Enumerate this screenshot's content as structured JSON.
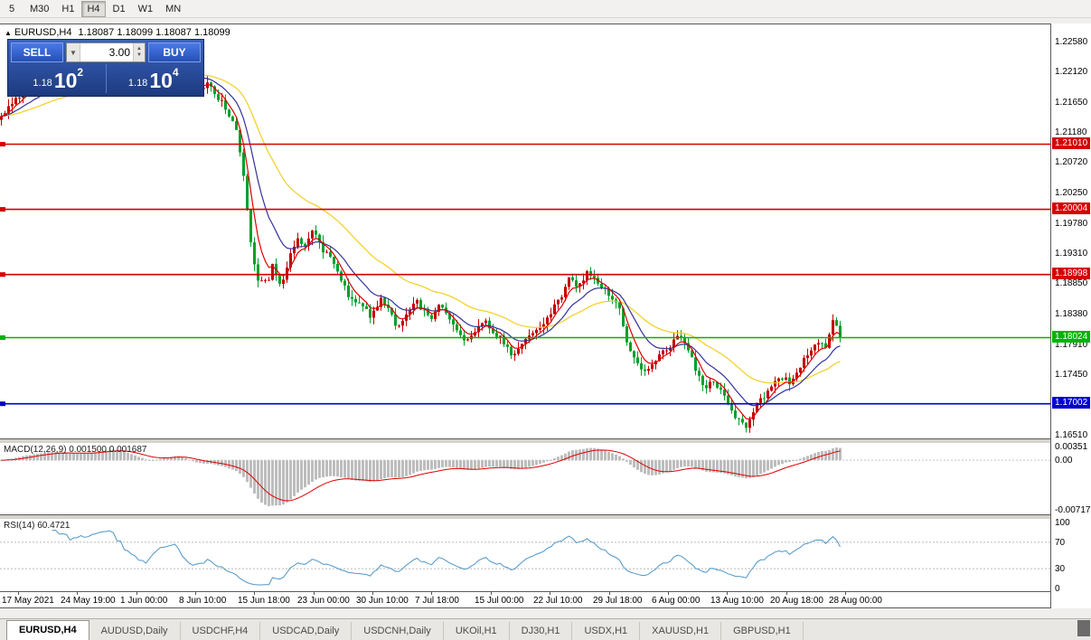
{
  "toolbar": {
    "timeframes": [
      "5",
      "M30",
      "H1",
      "H4",
      "D1",
      "W1",
      "MN"
    ],
    "active": "H4"
  },
  "chart_header": {
    "arrow": "▲",
    "title": "EURUSD,H4",
    "ohlc": "1.18087 1.18099 1.18087 1.18099"
  },
  "trade_panel": {
    "sell_label": "SELL",
    "buy_label": "BUY",
    "volume": "3.00",
    "sell_small": "1.18",
    "sell_big": "10",
    "sell_sup": "2",
    "buy_small": "1.18",
    "buy_big": "10",
    "buy_sup": "4"
  },
  "price_axis": {
    "ticks": [
      "1.22580",
      "1.22120",
      "1.21650",
      "1.21180",
      "1.20720",
      "1.20250",
      "1.19780",
      "1.19310",
      "1.18850",
      "1.18380",
      "1.17910",
      "1.17450",
      "1.16510"
    ]
  },
  "hlines": [
    {
      "price": 1.2101,
      "label": "1.21010",
      "color": "#d40000"
    },
    {
      "price": 1.20004,
      "label": "1.20004",
      "color": "#d40000"
    },
    {
      "price": 1.18998,
      "label": "1.18998",
      "color": "#d40000"
    },
    {
      "price": 1.18024,
      "label": "1.18024",
      "color": "#00b400"
    },
    {
      "price": 1.17002,
      "label": "1.17002",
      "color": "#0000cd"
    }
  ],
  "macd_panel": {
    "header": "MACD(12,26,9) 0.001500 0.001687",
    "top_label": "0.00351",
    "zero_label": "0.00",
    "bottom_label": "-0.00717"
  },
  "rsi_panel": {
    "header": "RSI(14) 60.4721",
    "labels": [
      "100",
      "70",
      "30",
      "0"
    ],
    "label_values": [
      100,
      70,
      30,
      0
    ],
    "levels": [
      70,
      30
    ]
  },
  "time_axis": {
    "labels": [
      "17 May 2021",
      "24 May 19:00",
      "1 Jun 00:00",
      "8 Jun 10:00",
      "15 Jun 18:00",
      "23 Jun 00:00",
      "30 Jun 10:00",
      "7 Jul 18:00",
      "15 Jul 00:00",
      "22 Jul 10:00",
      "29 Jul 18:00",
      "6 Aug 00:00",
      "13 Aug 10:00",
      "20 Aug 18:00",
      "28 Aug 00:00"
    ]
  },
  "tabs": [
    {
      "label": "EURUSD,H4",
      "active": true
    },
    {
      "label": "AUDUSD,Daily",
      "active": false
    },
    {
      "label": "USDCHF,H4",
      "active": false
    },
    {
      "label": "USDCAD,Daily",
      "active": false
    },
    {
      "label": "USDCNH,Daily",
      "active": false
    },
    {
      "label": "UKOil,H1",
      "active": false
    },
    {
      "label": "DJ30,H1",
      "active": false
    },
    {
      "label": "USDX,H1",
      "active": false
    },
    {
      "label": "XAUUSD,H1",
      "active": false
    },
    {
      "label": "GBPUSD,H1",
      "active": false
    }
  ],
  "chart_data": {
    "type": "candlestick",
    "symbol": "EURUSD",
    "timeframe": "H4",
    "ylim": [
      1.1651,
      1.2258
    ],
    "n_candles": 233,
    "seed": 12345,
    "candle_colors": {
      "bull": "#c40000",
      "bear": "#00a02c"
    },
    "ma": [
      {
        "period": 34,
        "color": "#f2cf1f"
      },
      {
        "period": 13,
        "color": "#32329b"
      },
      {
        "period": 5,
        "color": "#e00000"
      }
    ],
    "macd": {
      "fast": 12,
      "slow": 26,
      "signal": 9,
      "hist_color": "#bdbdbd",
      "signal_color": "#e00000"
    },
    "rsi": {
      "period": 14,
      "color": "#4e96c8"
    },
    "price_path": [
      [
        0.0,
        1.214
      ],
      [
        0.01,
        1.216
      ],
      [
        0.032,
        1.2185
      ],
      [
        0.059,
        1.2205
      ],
      [
        0.081,
        1.2195
      ],
      [
        0.108,
        1.222
      ],
      [
        0.129,
        1.225
      ],
      [
        0.151,
        1.222
      ],
      [
        0.172,
        1.219
      ],
      [
        0.188,
        1.2225
      ],
      [
        0.21,
        1.224
      ],
      [
        0.226,
        1.218
      ],
      [
        0.247,
        1.2195
      ],
      [
        0.263,
        1.2165
      ],
      [
        0.28,
        1.2125
      ],
      [
        0.29,
        1.204
      ],
      [
        0.299,
        1.1935
      ],
      [
        0.306,
        1.1895
      ],
      [
        0.317,
        1.1885
      ],
      [
        0.323,
        1.1915
      ],
      [
        0.333,
        1.188
      ],
      [
        0.344,
        1.193
      ],
      [
        0.355,
        1.1958
      ],
      [
        0.36,
        1.1942
      ],
      [
        0.371,
        1.1972
      ],
      [
        0.382,
        1.194
      ],
      [
        0.392,
        1.1925
      ],
      [
        0.403,
        1.1895
      ],
      [
        0.414,
        1.1868
      ],
      [
        0.425,
        1.1855
      ],
      [
        0.441,
        1.1835
      ],
      [
        0.452,
        1.1862
      ],
      [
        0.462,
        1.185
      ],
      [
        0.473,
        1.1815
      ],
      [
        0.484,
        1.184
      ],
      [
        0.495,
        1.1858
      ],
      [
        0.511,
        1.183
      ],
      [
        0.522,
        1.1852
      ],
      [
        0.532,
        1.184
      ],
      [
        0.543,
        1.1815
      ],
      [
        0.554,
        1.1798
      ],
      [
        0.565,
        1.1812
      ],
      [
        0.575,
        1.1828
      ],
      [
        0.586,
        1.1812
      ],
      [
        0.597,
        1.18
      ],
      [
        0.608,
        1.1775
      ],
      [
        0.618,
        1.1786
      ],
      [
        0.629,
        1.1805
      ],
      [
        0.645,
        1.182
      ],
      [
        0.656,
        1.1842
      ],
      [
        0.667,
        1.1866
      ],
      [
        0.677,
        1.1893
      ],
      [
        0.688,
        1.188
      ],
      [
        0.699,
        1.1902
      ],
      [
        0.71,
        1.1888
      ],
      [
        0.72,
        1.1875
      ],
      [
        0.737,
        1.1848
      ],
      [
        0.747,
        1.1792
      ],
      [
        0.758,
        1.1762
      ],
      [
        0.769,
        1.1748
      ],
      [
        0.78,
        1.1768
      ],
      [
        0.796,
        1.1788
      ],
      [
        0.806,
        1.1808
      ],
      [
        0.817,
        1.179
      ],
      [
        0.828,
        1.1752
      ],
      [
        0.839,
        1.1722
      ],
      [
        0.849,
        1.1738
      ],
      [
        0.866,
        1.17
      ],
      [
        0.876,
        1.1678
      ],
      [
        0.887,
        1.1665
      ],
      [
        0.898,
        1.1692
      ],
      [
        0.909,
        1.1712
      ],
      [
        0.919,
        1.1726
      ],
      [
        0.93,
        1.1742
      ],
      [
        0.941,
        1.1732
      ],
      [
        0.952,
        1.1758
      ],
      [
        0.962,
        1.1778
      ],
      [
        0.973,
        1.1795
      ],
      [
        0.984,
        1.1788
      ],
      [
        0.991,
        1.1832
      ],
      [
        1.0,
        1.1803
      ]
    ]
  }
}
